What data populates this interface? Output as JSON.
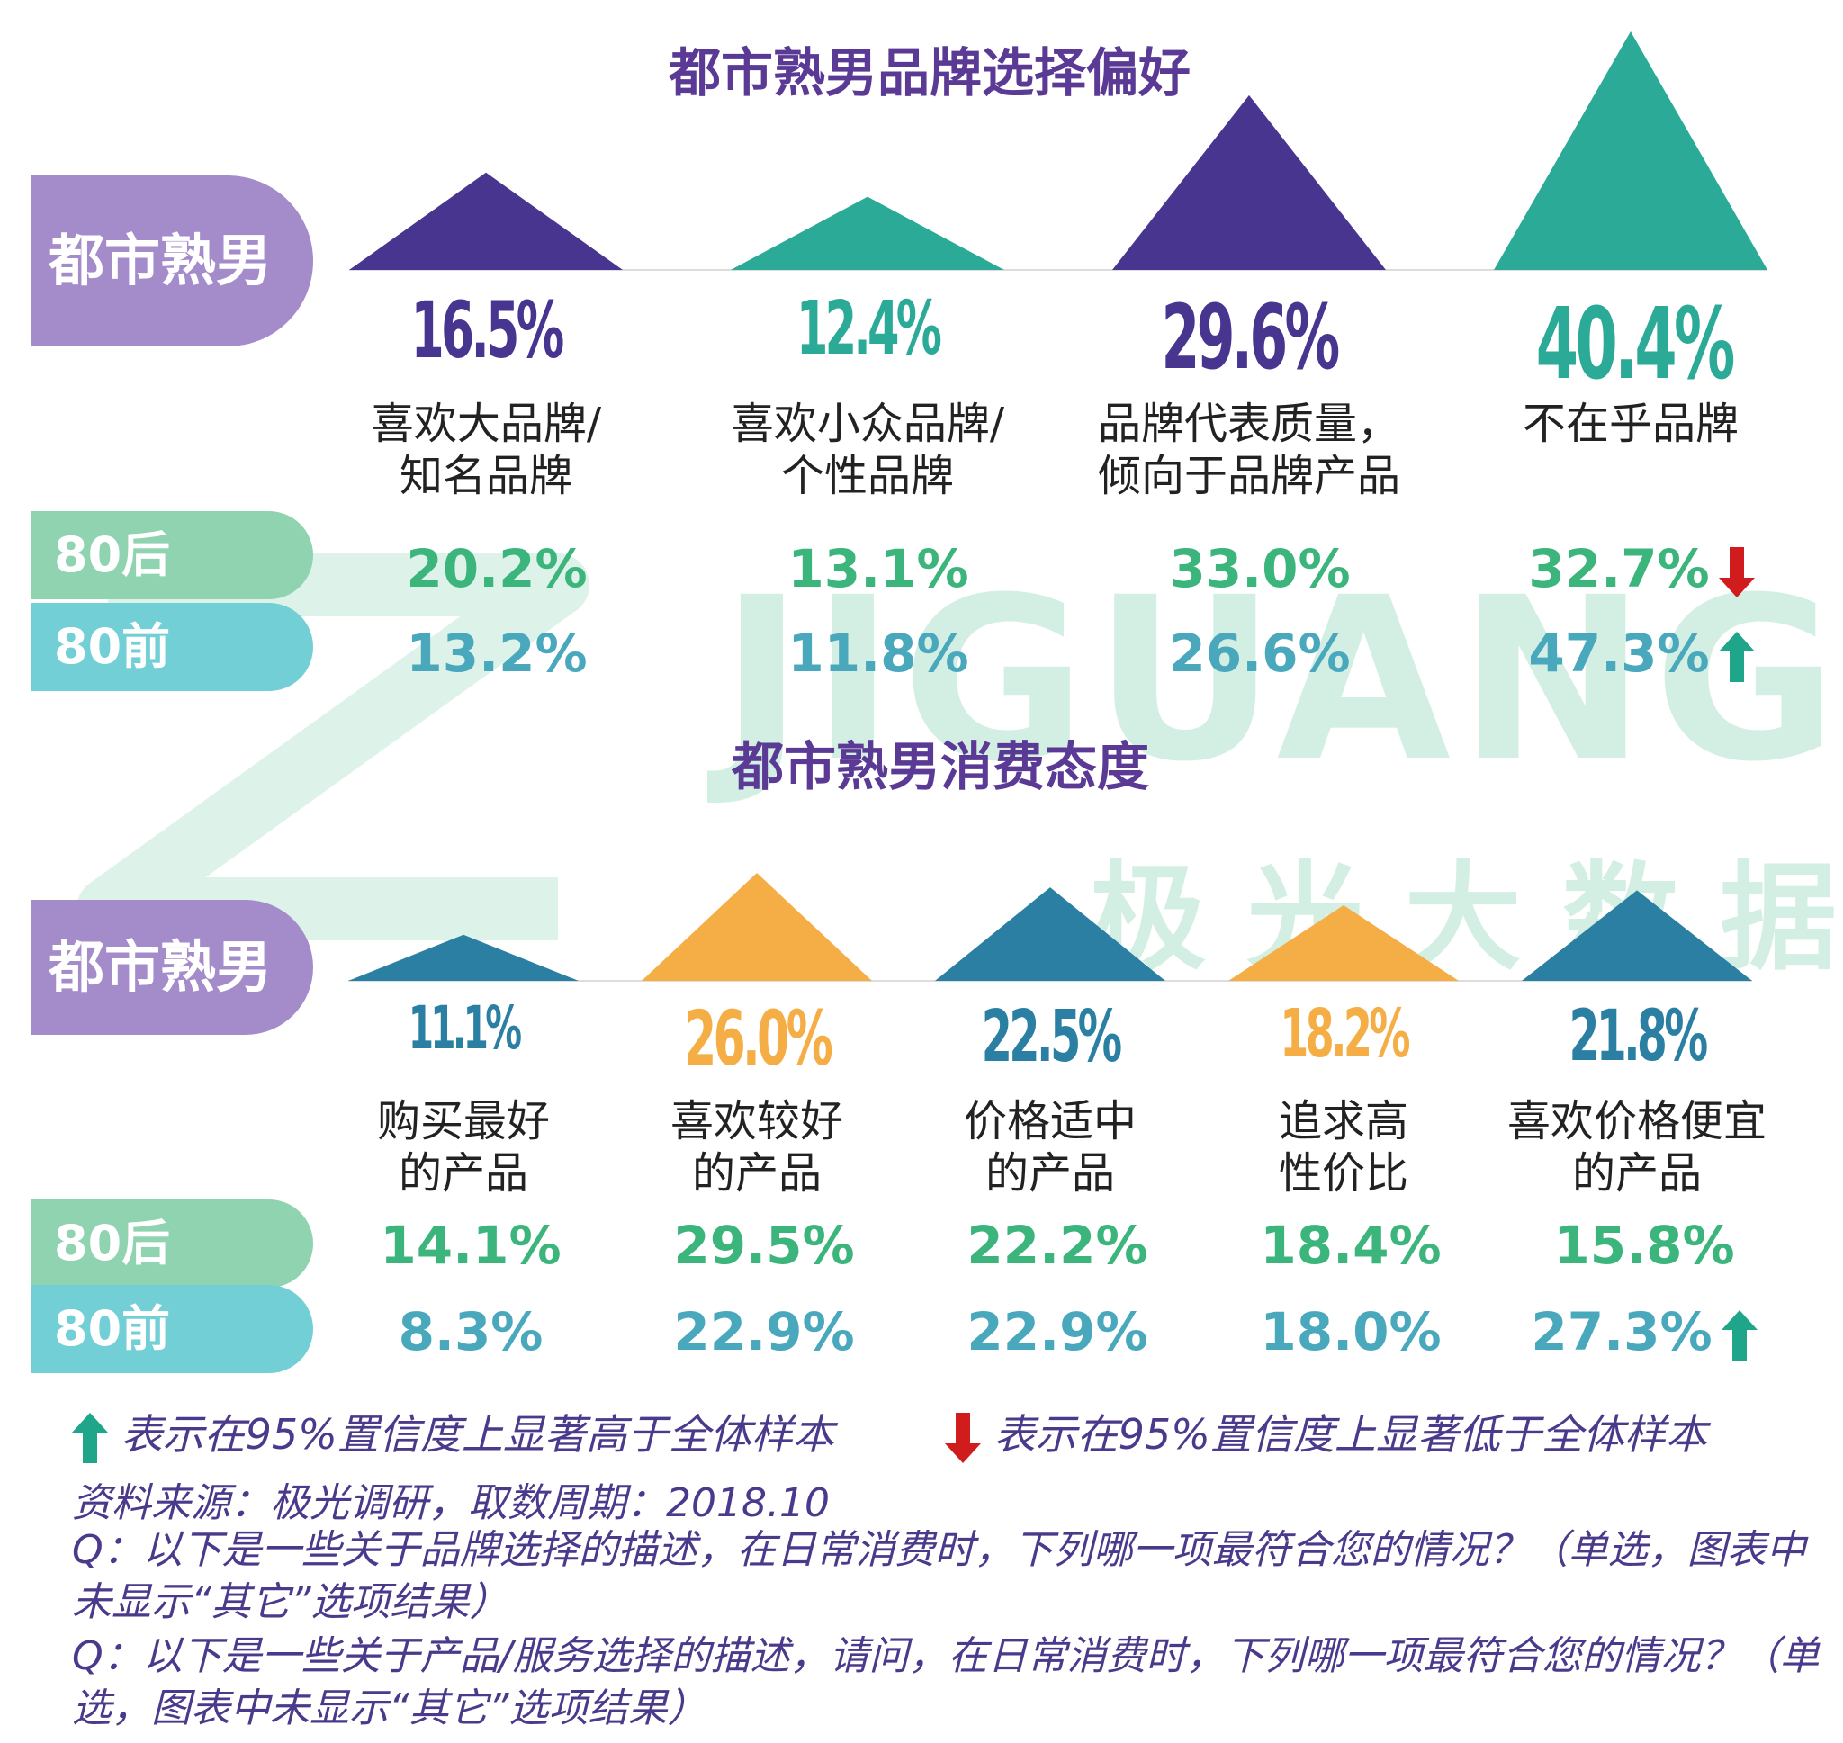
{
  "chart_data": [
    {
      "type": "bar",
      "title": "都市熟男品牌选择偏好",
      "categories": [
        "喜欢大品牌/\n知名品牌",
        "喜欢小众品牌/\n个性品牌",
        "品牌代表质量，\n倾向于品牌产品",
        "不在乎品牌"
      ],
      "series": [
        {
          "name": "都市熟男",
          "values": [
            16.5,
            12.4,
            29.6,
            40.4
          ],
          "labels": [
            "16.5%",
            "12.4%",
            "29.6%",
            "40.4%"
          ]
        },
        {
          "name": "80后",
          "values": [
            20.2,
            13.1,
            33.0,
            32.7
          ],
          "labels": [
            "20.2%",
            "13.1%",
            "33.0%",
            "32.7%"
          ],
          "significance": [
            "",
            "",
            "",
            "down"
          ]
        },
        {
          "name": "80前",
          "values": [
            13.2,
            11.8,
            26.6,
            47.3
          ],
          "labels": [
            "13.2%",
            "11.8%",
            "26.6%",
            "47.3%"
          ],
          "significance": [
            "",
            "",
            "",
            "up"
          ]
        }
      ],
      "triangle_colors": [
        "#48358f",
        "#2aaa97",
        "#48358f",
        "#2aaa97"
      ],
      "label_colors": [
        "#48358f",
        "#2aaa97",
        "#48358f",
        "#2aaa97"
      ]
    },
    {
      "type": "bar",
      "title": "都市熟男消费态度",
      "categories": [
        "购买最好\n的产品",
        "喜欢较好\n的产品",
        "价格适中\n的产品",
        "追求高\n性价比",
        "喜欢价格便宜\n的产品"
      ],
      "series": [
        {
          "name": "都市熟男",
          "values": [
            11.1,
            26.0,
            22.5,
            18.2,
            21.8
          ],
          "labels": [
            "11.1%",
            "26.0%",
            "22.5%",
            "18.2%",
            "21.8%"
          ]
        },
        {
          "name": "80后",
          "values": [
            14.1,
            29.5,
            22.2,
            18.4,
            15.8
          ],
          "labels": [
            "14.1%",
            "29.5%",
            "22.2%",
            "18.4%",
            "15.8%"
          ],
          "significance": [
            "",
            "",
            "",
            "",
            ""
          ]
        },
        {
          "name": "80前",
          "values": [
            8.3,
            22.9,
            22.9,
            18.0,
            27.3
          ],
          "labels": [
            "8.3%",
            "22.9%",
            "22.9%",
            "18.0%",
            "27.3%"
          ],
          "significance": [
            "",
            "",
            "",
            "",
            "up"
          ]
        }
      ],
      "triangle_colors": [
        "#2a7fa3",
        "#f5ae45",
        "#2a7fa3",
        "#f5ae45",
        "#2a7fa3"
      ],
      "label_colors": [
        "#2a7fa3",
        "#f5ae45",
        "#2a7fa3",
        "#f5ae45",
        "#2a7fa3"
      ]
    }
  ],
  "colors": {
    "title": "#5b3a96",
    "pill_main": "#a48bc9",
    "pill_80hou": "#8fd3b1",
    "pill_80qian": "#72cfd6",
    "val_80hou": "#3cb57c",
    "val_80qian": "#4aa8bd",
    "arrow_up": "#1fa58a",
    "arrow_down": "#d01c1c",
    "footnote": "#4b3a8c"
  },
  "labels": {
    "segment_main": "都市熟男",
    "segment_80hou": "80后",
    "segment_80qian": "80前"
  },
  "legend": {
    "up": "表示在95%置信度上显著高于全体样本",
    "down": "表示在95%置信度上显著低于全体样本"
  },
  "footnotes": {
    "source": "资料来源：极光调研，取数周期：2018.10",
    "q1": "Q：以下是一些关于品牌选择的描述，在日常消费时，下列哪一项最符合您的情况？（单选，图表中未显示“其它”选项结果）",
    "q2": "Q：以下是一些关于产品/服务选择的描述，请问，在日常消费时，下列哪一项最符合您的情况？（单选，图表中未显示“其它”选项结果）"
  },
  "watermark": {
    "brand": "JIGUANG",
    "brand_cn": "极 光 大 数 据"
  }
}
